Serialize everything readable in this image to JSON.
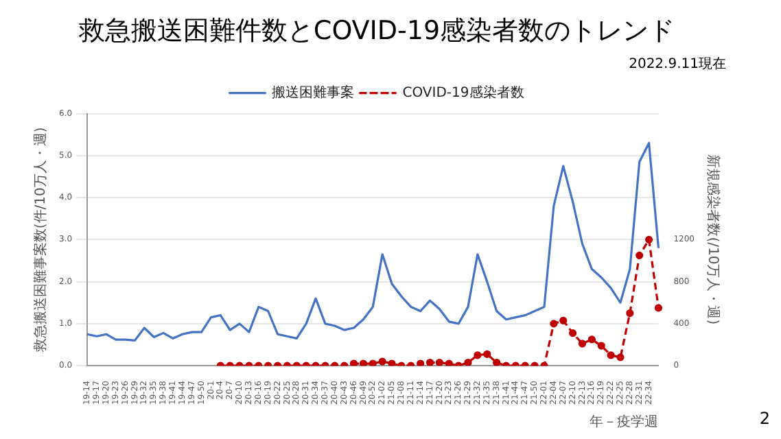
{
  "chart_data": {
    "type": "line",
    "title": "救急搬送困難件数とCOVID-19感染者数のトレンド",
    "subtitle": "2022.9.11現在",
    "xlabel": "年－疫学週",
    "ylabel": "救急搬送困難事案数(件/10万人・週)",
    "y2label": "新規感染者数(/10万人・週)",
    "annotations": [
      "2"
    ],
    "categories": [
      "19-14",
      "19-17",
      "19-20",
      "19-23",
      "19-26",
      "19-29",
      "19-32",
      "19-35",
      "19-38",
      "19-41",
      "19-44",
      "19-47",
      "19-50",
      "20-1",
      "20-4",
      "20-7",
      "20-10",
      "20-13",
      "20-16",
      "20-19",
      "20-22",
      "20-25",
      "20-28",
      "20-31",
      "20-34",
      "20-37",
      "20-40",
      "20-43",
      "20-46",
      "20-49",
      "20-52",
      "21-02",
      "21-05",
      "21-08",
      "21-11",
      "21-14",
      "21-17",
      "21-20",
      "21-23",
      "21-26",
      "21-29",
      "21-32",
      "21-35",
      "21-38",
      "21-41",
      "21-44",
      "21-47",
      "21-50",
      "22-01",
      "22-04",
      "22-07",
      "22-10",
      "22-13",
      "22-16",
      "22-19",
      "22-22",
      "22-25",
      "22-28",
      "22-31",
      "22-34",
      null
    ],
    "series": [
      {
        "name": "搬送困難事案",
        "color": "#4472c4",
        "line_style": "solid",
        "marker": "none",
        "values": [
          0.75,
          0.7,
          0.75,
          0.62,
          0.62,
          0.6,
          0.9,
          0.68,
          0.78,
          0.65,
          0.75,
          0.8,
          0.8,
          1.15,
          1.2,
          0.85,
          1.0,
          0.8,
          1.4,
          1.3,
          0.75,
          0.7,
          0.65,
          1.0,
          1.6,
          1.0,
          0.95,
          0.85,
          0.9,
          1.1,
          1.4,
          2.65,
          1.95,
          1.65,
          1.4,
          1.3,
          1.55,
          1.35,
          1.05,
          1.0,
          1.4,
          2.65,
          2.0,
          1.3,
          1.1,
          1.15,
          1.2,
          1.3,
          1.4,
          3.8,
          4.75,
          3.9,
          2.9,
          2.3,
          2.1,
          1.85,
          1.5,
          2.3,
          4.85,
          5.3,
          2.8
        ]
      },
      {
        "name": "COVID-19感染者数",
        "color": "#c00000",
        "axis": "y2",
        "line_style": "dashed",
        "marker": "circle",
        "values": [
          null,
          null,
          null,
          null,
          null,
          null,
          null,
          null,
          null,
          null,
          null,
          null,
          null,
          null,
          0,
          0,
          0,
          0,
          0,
          0,
          0,
          0,
          0,
          0,
          0,
          0,
          0,
          0,
          20,
          20,
          20,
          40,
          20,
          0,
          0,
          20,
          30,
          30,
          20,
          0,
          30,
          100,
          110,
          30,
          0,
          0,
          0,
          0,
          0,
          400,
          430,
          310,
          210,
          250,
          190,
          100,
          80,
          500,
          1050,
          1200,
          550
        ]
      }
    ],
    "ylim": [
      0,
      6
    ],
    "yticks": [
      {
        "value": 0,
        "label": "0.0"
      },
      {
        "value": 1,
        "label": "1.0"
      },
      {
        "value": 2,
        "label": "2.0"
      },
      {
        "value": 3,
        "label": "3.0"
      },
      {
        "value": 4,
        "label": "4.0"
      },
      {
        "value": 5,
        "label": "5.0"
      },
      {
        "value": 6,
        "label": "6.0"
      }
    ],
    "y2lim": [
      0,
      2400
    ],
    "y2ticks": [
      0,
      400,
      800,
      1200
    ],
    "grid": "y",
    "legend": "top"
  }
}
